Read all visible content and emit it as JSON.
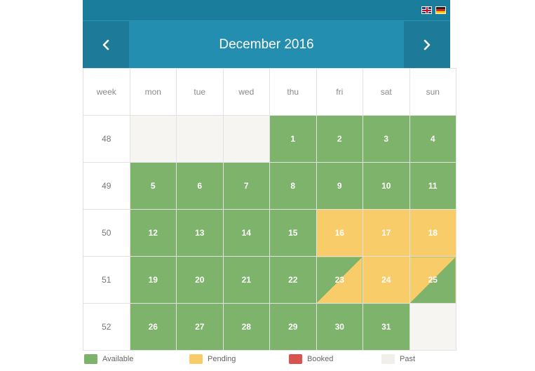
{
  "header": {
    "title": "December 2016",
    "prev_icon": "chevron-left-icon",
    "next_icon": "chevron-right-icon",
    "flags": [
      "uk-flag-icon",
      "german-flag-icon"
    ]
  },
  "calendar": {
    "headers": [
      "week",
      "mon",
      "tue",
      "wed",
      "thu",
      "fri",
      "sat",
      "sun"
    ],
    "weeks": [
      {
        "week": "48",
        "days": [
          {
            "label": "",
            "status": "past"
          },
          {
            "label": "",
            "status": "past"
          },
          {
            "label": "",
            "status": "past"
          },
          {
            "label": "1",
            "status": "available"
          },
          {
            "label": "2",
            "status": "available"
          },
          {
            "label": "3",
            "status": "available"
          },
          {
            "label": "4",
            "status": "available"
          }
        ]
      },
      {
        "week": "49",
        "days": [
          {
            "label": "5",
            "status": "available"
          },
          {
            "label": "6",
            "status": "available"
          },
          {
            "label": "7",
            "status": "available"
          },
          {
            "label": "8",
            "status": "available"
          },
          {
            "label": "9",
            "status": "available"
          },
          {
            "label": "10",
            "status": "available"
          },
          {
            "label": "11",
            "status": "available"
          }
        ]
      },
      {
        "week": "50",
        "days": [
          {
            "label": "12",
            "status": "available"
          },
          {
            "label": "13",
            "status": "available"
          },
          {
            "label": "14",
            "status": "available"
          },
          {
            "label": "15",
            "status": "available"
          },
          {
            "label": "16",
            "status": "pending"
          },
          {
            "label": "17",
            "status": "pending"
          },
          {
            "label": "18",
            "status": "pending"
          }
        ]
      },
      {
        "week": "51",
        "days": [
          {
            "label": "19",
            "status": "available"
          },
          {
            "label": "20",
            "status": "available"
          },
          {
            "label": "21",
            "status": "available"
          },
          {
            "label": "22",
            "status": "available"
          },
          {
            "label": "23",
            "status": "available-pending"
          },
          {
            "label": "24",
            "status": "pending"
          },
          {
            "label": "25",
            "status": "pending-available"
          }
        ]
      },
      {
        "week": "52",
        "days": [
          {
            "label": "26",
            "status": "available"
          },
          {
            "label": "27",
            "status": "available"
          },
          {
            "label": "28",
            "status": "available"
          },
          {
            "label": "29",
            "status": "available"
          },
          {
            "label": "30",
            "status": "available"
          },
          {
            "label": "31",
            "status": "available"
          },
          {
            "label": "",
            "status": "past"
          }
        ]
      }
    ]
  },
  "legend": [
    {
      "label": "Available",
      "color": "#7db36a"
    },
    {
      "label": "Pending",
      "color": "#f8cd69"
    },
    {
      "label": "Booked",
      "color": "#d9534f"
    },
    {
      "label": "Past",
      "color": "#f1efea"
    }
  ]
}
